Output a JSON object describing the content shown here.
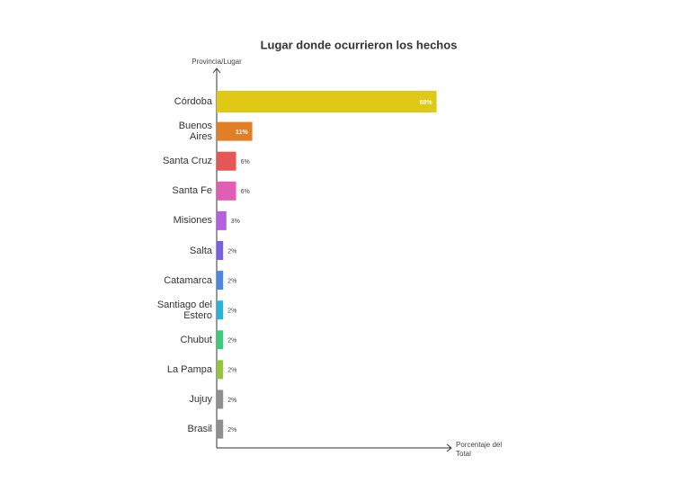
{
  "chart_data": {
    "type": "bar",
    "orientation": "horizontal",
    "title": "Lugar donde ocurrieron los hechos",
    "ylabel": "Provincia/Lugar",
    "xlabel": "Porcentaje del\nTotal",
    "categories": [
      "Córdoba",
      "Buenos\nAires",
      "Santa Cruz",
      "Santa Fe",
      "Misiones",
      "Salta",
      "Catamarca",
      "Santiago del\nEstero",
      "Chubut",
      "La Pampa",
      "Jujuy",
      "Brasil"
    ],
    "values": [
      68,
      11,
      6,
      6,
      3,
      2,
      2,
      2,
      2,
      2,
      2,
      2
    ],
    "value_labels": [
      "68%",
      "11%",
      "6%",
      "6%",
      "3%",
      "2%",
      "2%",
      "2%",
      "2%",
      "2%",
      "2%",
      "2%"
    ],
    "colors": [
      "#dfc914",
      "#e07f28",
      "#e65656",
      "#e05fb4",
      "#b45ee2",
      "#7a5fe2",
      "#4b86e0",
      "#2db0d8",
      "#3cc97c",
      "#98c142",
      "#8f8f8f",
      "#8f8f8f"
    ],
    "xlim": [
      0,
      72
    ]
  }
}
